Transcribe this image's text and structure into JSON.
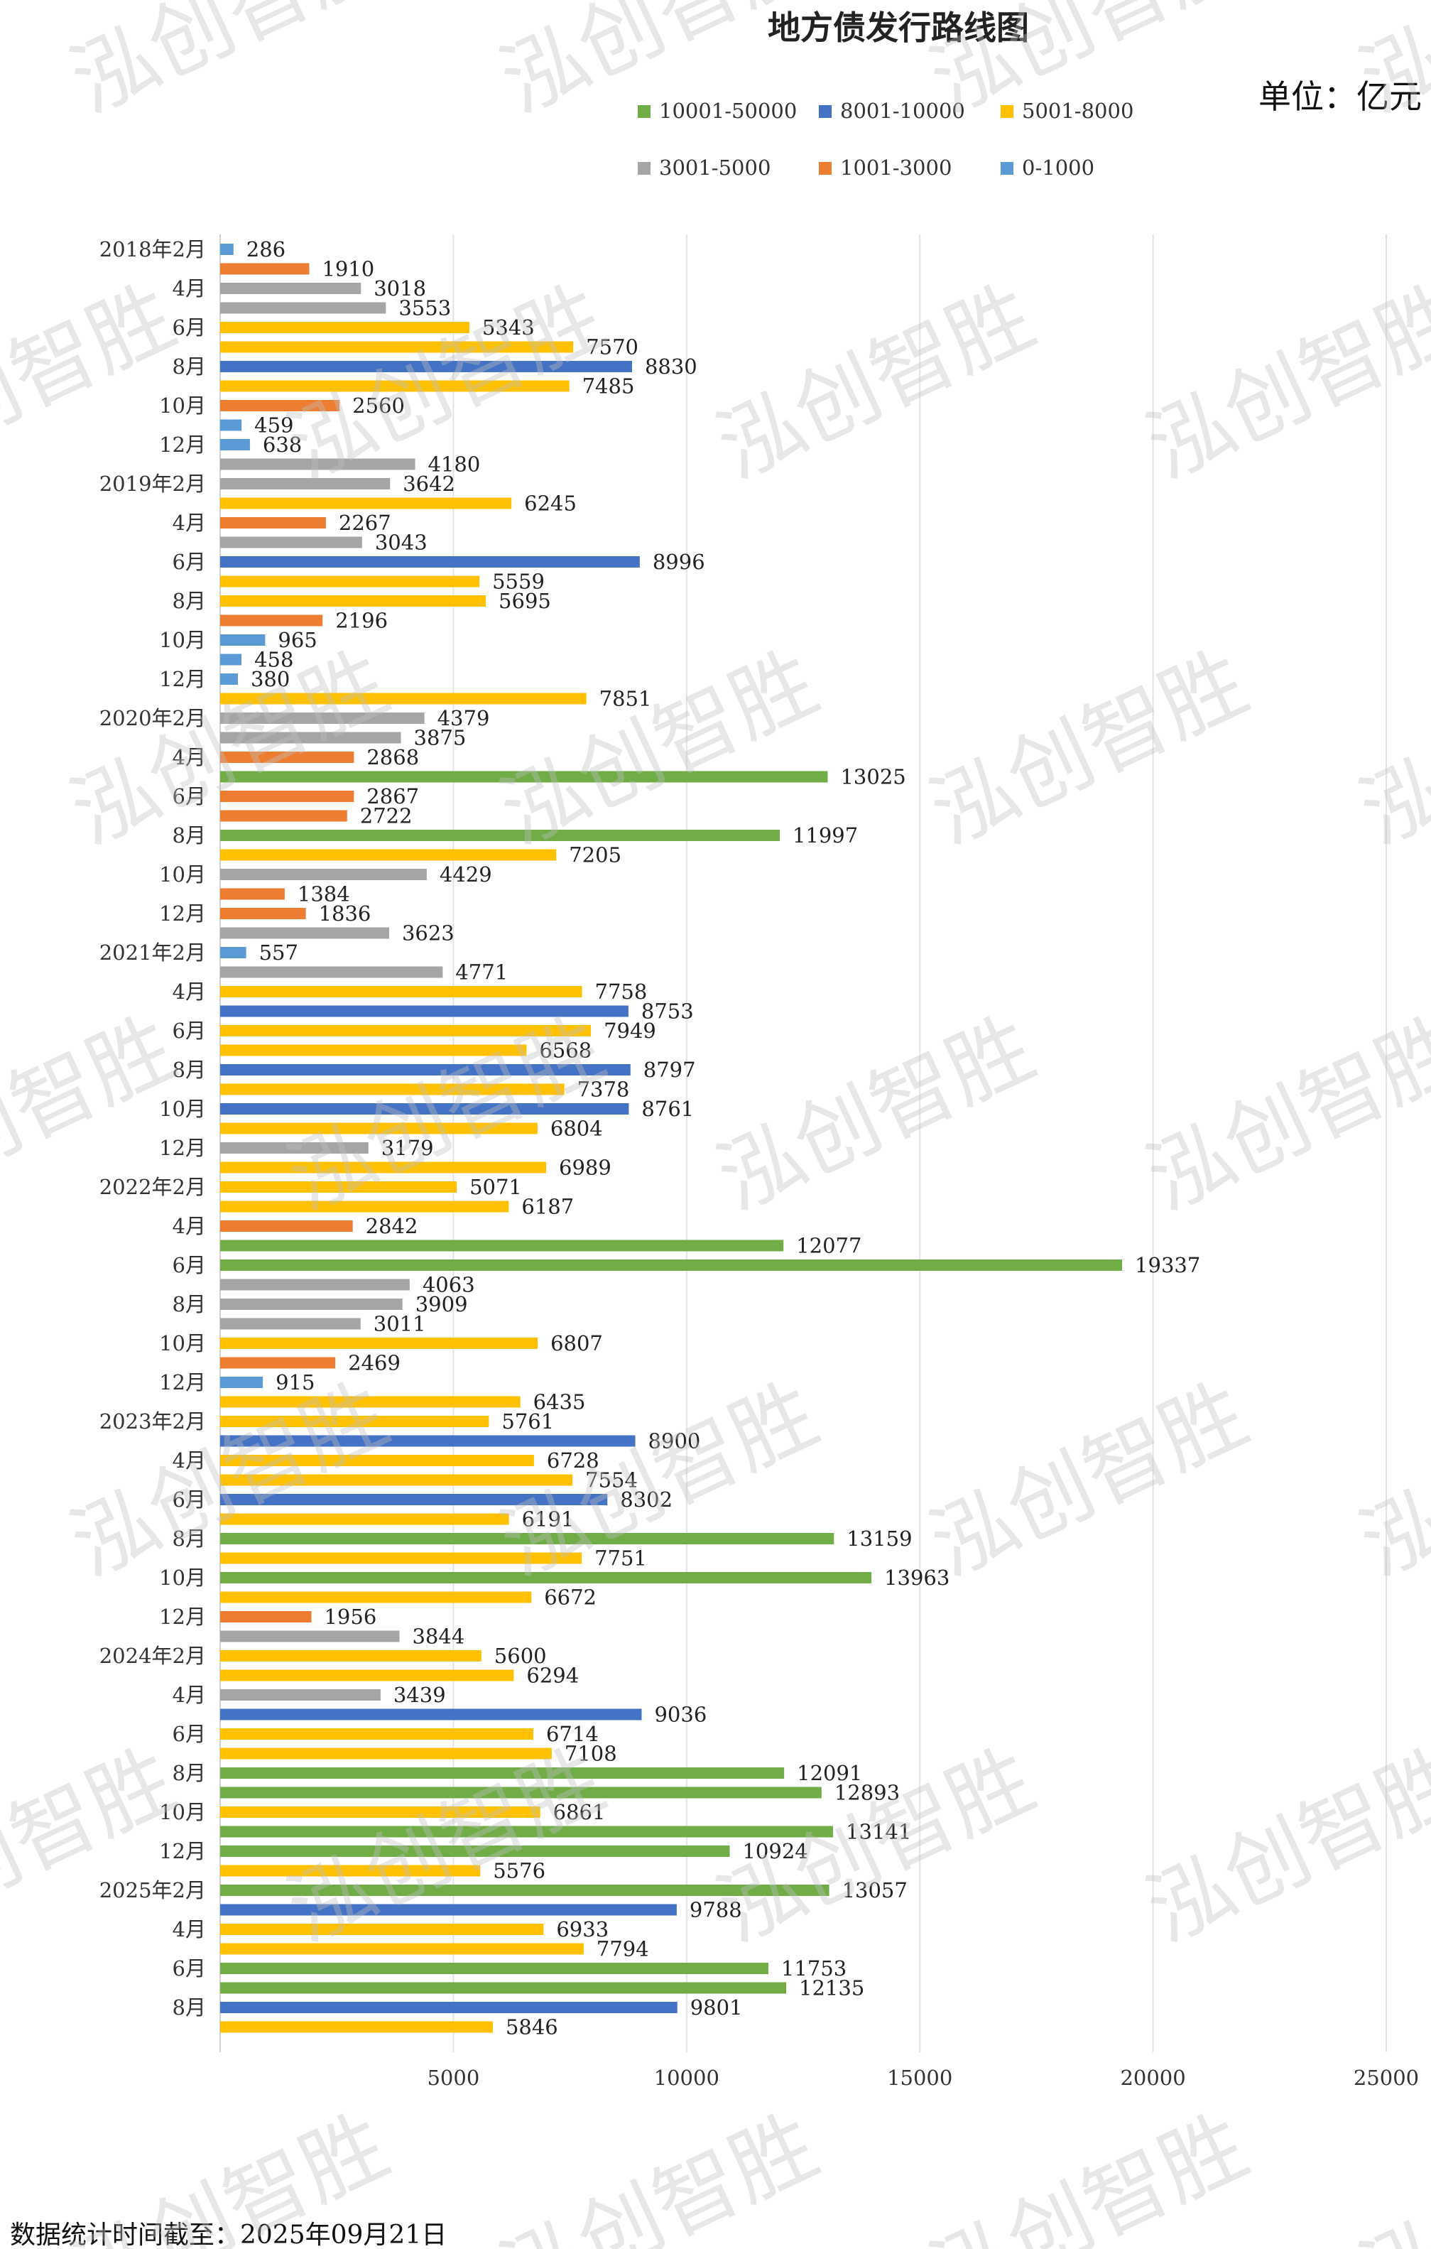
{
  "chart_data": {
    "type": "bar",
    "orientation": "horizontal",
    "title": "地方债发行路线图",
    "unit_label": "单位：亿元",
    "legend_position": "top",
    "xlim": [
      0,
      25000
    ],
    "x_ticks": [
      5000,
      10000,
      15000,
      20000,
      25000
    ],
    "grid": true,
    "legend": [
      {
        "label": "10001-50000",
        "color": "#70ad47"
      },
      {
        "label": "8001-10000",
        "color": "#4472c4"
      },
      {
        "label": "5001-8000",
        "color": "#ffc000"
      },
      {
        "label": "3001-5000",
        "color": "#a5a5a5"
      },
      {
        "label": "1001-3000",
        "color": "#ed7d31"
      },
      {
        "label": "0-1000",
        "color": "#5b9bd5"
      }
    ],
    "category_labels": [
      "2018年2月",
      "4月",
      "6月",
      "8月",
      "10月",
      "12月",
      "2019年2月",
      "4月",
      "6月",
      "8月",
      "10月",
      "12月",
      "2020年2月",
      "4月",
      "6月",
      "8月",
      "10月",
      "12月",
      "2021年2月",
      "4月",
      "6月",
      "8月",
      "10月",
      "12月",
      "2022年2月",
      "4月",
      "6月",
      "8月",
      "10月",
      "12月",
      "2023年2月",
      "4月",
      "6月",
      "8月",
      "10月",
      "12月",
      "2024年2月",
      "4月",
      "6月",
      "8月",
      "10月",
      "12月",
      "2025年2月",
      "4月",
      "6月",
      "8月"
    ],
    "values": [
      286,
      1910,
      3018,
      3553,
      5343,
      7570,
      8830,
      7485,
      2560,
      459,
      638,
      4180,
      3642,
      6245,
      2267,
      3043,
      8996,
      5559,
      5695,
      2196,
      965,
      458,
      380,
      7851,
      4379,
      3875,
      2868,
      13025,
      2867,
      2722,
      11997,
      7205,
      4429,
      1384,
      1836,
      3623,
      557,
      4771,
      7758,
      8753,
      7949,
      6568,
      8797,
      7378,
      8761,
      6804,
      3179,
      6989,
      5071,
      6187,
      2842,
      12077,
      19337,
      4063,
      3909,
      3011,
      6807,
      2469,
      915,
      6435,
      5761,
      8900,
      6728,
      7554,
      8302,
      6191,
      13159,
      7751,
      13963,
      6672,
      1956,
      3844,
      5600,
      6294,
      3439,
      9036,
      6714,
      7108,
      12091,
      12893,
      6861,
      13141,
      10924,
      5576,
      13057,
      9788,
      6933,
      7794,
      11753,
      12135,
      9801,
      5846
    ]
  },
  "footer": "数据统计时间截至：2025年09月21日",
  "watermark": "泓创智胜"
}
